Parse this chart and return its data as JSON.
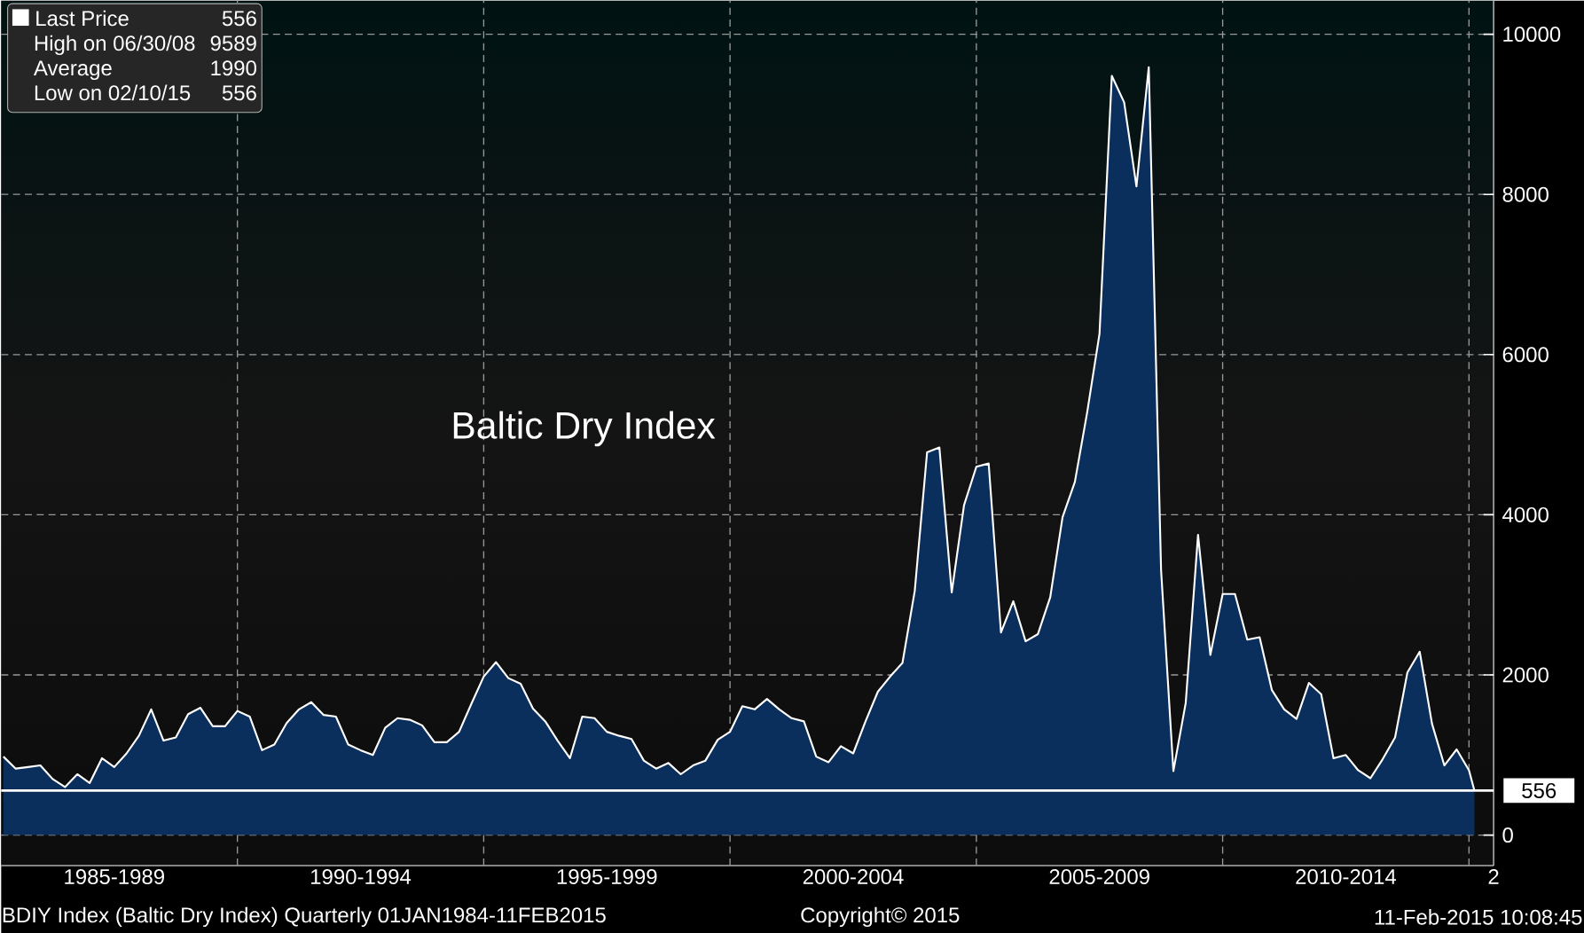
{
  "chart_data": {
    "type": "area",
    "title": "Baltic Dry Index",
    "x": [
      "1985-04",
      "1985-07",
      "1985-10",
      "1986-01",
      "1986-04",
      "1986-07",
      "1986-10",
      "1987-01",
      "1987-04",
      "1987-07",
      "1987-10",
      "1988-01",
      "1988-04",
      "1988-07",
      "1988-10",
      "1989-01",
      "1989-04",
      "1989-07",
      "1989-10",
      "1990-01",
      "1990-04",
      "1990-07",
      "1990-10",
      "1991-01",
      "1991-04",
      "1991-07",
      "1991-10",
      "1992-01",
      "1992-04",
      "1992-07",
      "1992-10",
      "1993-01",
      "1993-04",
      "1993-07",
      "1993-10",
      "1994-01",
      "1994-04",
      "1994-07",
      "1994-10",
      "1995-01",
      "1995-04",
      "1995-07",
      "1995-10",
      "1996-01",
      "1996-04",
      "1996-07",
      "1996-10",
      "1997-01",
      "1997-04",
      "1997-07",
      "1997-10",
      "1998-01",
      "1998-04",
      "1998-07",
      "1998-10",
      "1999-01",
      "1999-04",
      "1999-07",
      "1999-10",
      "2000-01",
      "2000-04",
      "2000-07",
      "2000-10",
      "2001-01",
      "2001-04",
      "2001-07",
      "2001-10",
      "2002-01",
      "2002-04",
      "2002-07",
      "2002-10",
      "2003-01",
      "2003-04",
      "2003-07",
      "2003-10",
      "2004-01",
      "2004-04",
      "2004-07",
      "2004-10",
      "2005-01",
      "2005-04",
      "2005-07",
      "2005-10",
      "2006-01",
      "2006-04",
      "2006-07",
      "2006-10",
      "2007-01",
      "2007-04",
      "2007-07",
      "2007-10",
      "2008-01",
      "2008-04",
      "2008-07",
      "2008-10",
      "2009-01",
      "2009-04",
      "2009-07",
      "2009-10",
      "2010-01",
      "2010-04",
      "2010-07",
      "2010-10",
      "2011-01",
      "2011-04",
      "2011-07",
      "2011-10",
      "2012-01",
      "2012-04",
      "2012-07",
      "2012-10",
      "2013-01",
      "2013-04",
      "2013-07",
      "2013-10",
      "2014-01",
      "2014-04",
      "2014-07",
      "2014-10",
      "2015-01",
      "2015-02-11"
    ],
    "series": [
      {
        "name": "Last Price",
        "color": "#ffffff",
        "values": [
          980,
          830,
          850,
          870,
          700,
          600,
          760,
          650,
          960,
          850,
          1020,
          1240,
          1570,
          1180,
          1220,
          1510,
          1590,
          1360,
          1360,
          1550,
          1480,
          1060,
          1130,
          1400,
          1570,
          1660,
          1500,
          1480,
          1130,
          1060,
          1000,
          1340,
          1460,
          1440,
          1370,
          1160,
          1160,
          1290,
          1640,
          1980,
          2160,
          1960,
          1890,
          1580,
          1420,
          1180,
          960,
          1480,
          1460,
          1290,
          1240,
          1200,
          930,
          830,
          900,
          760,
          870,
          930,
          1190,
          1290,
          1610,
          1570,
          1700,
          1570,
          1460,
          1420,
          980,
          910,
          1110,
          1020,
          1420,
          1790,
          1980,
          2150,
          3050,
          4780,
          4840,
          3030,
          4120,
          4600,
          4640,
          2530,
          2920,
          2420,
          2510,
          2970,
          3970,
          4410,
          5280,
          6260,
          9480,
          9150,
          8100,
          9589,
          3310,
          800,
          1650,
          3750,
          2250,
          3010,
          3010,
          2440,
          2470,
          1810,
          1570,
          1450,
          1900,
          1760,
          960,
          1000,
          810,
          710,
          950,
          1220,
          2030,
          2290,
          1390,
          870,
          1070,
          810,
          556
        ]
      }
    ],
    "xlim": [
      "1985-03-15",
      "2015-07"
    ],
    "xticks": [
      {
        "value": "1987-07",
        "label": "1985-1989"
      },
      {
        "value": "1990",
        "label": null
      },
      {
        "value": "1992-07",
        "label": "1990-1994"
      },
      {
        "value": "1995",
        "label": null
      },
      {
        "value": "1997-07",
        "label": "1995-1999"
      },
      {
        "value": "2000",
        "label": null
      },
      {
        "value": "2002-07",
        "label": "2000-2004"
      },
      {
        "value": "2005",
        "label": null
      },
      {
        "value": "2007-07",
        "label": "2005-2009"
      },
      {
        "value": "2010",
        "label": null
      },
      {
        "value": "2012-07",
        "label": "2010-2014"
      },
      {
        "value": "2015",
        "label": null
      },
      {
        "value": "2015-07",
        "label": "2"
      }
    ],
    "ylim": [
      -380,
      10420
    ],
    "yticks": [
      0,
      2000,
      4000,
      6000,
      8000,
      10000
    ],
    "grid": true,
    "legend": "top left",
    "ref_lines": [
      {
        "axis": "y",
        "value": 556,
        "label": "556",
        "color": "#ffffff"
      }
    ],
    "annotations": [
      "556",
      "High on 06/30/08",
      "9589",
      "Average",
      "1990",
      "Low on 02/10/15",
      "556",
      "BDIY Index (Baltic Dry Index)  Quarterly 01JAN1984-11FEB2015",
      "Copyright© 2015",
      "11-Feb-2015 10:08:45"
    ]
  }
}
